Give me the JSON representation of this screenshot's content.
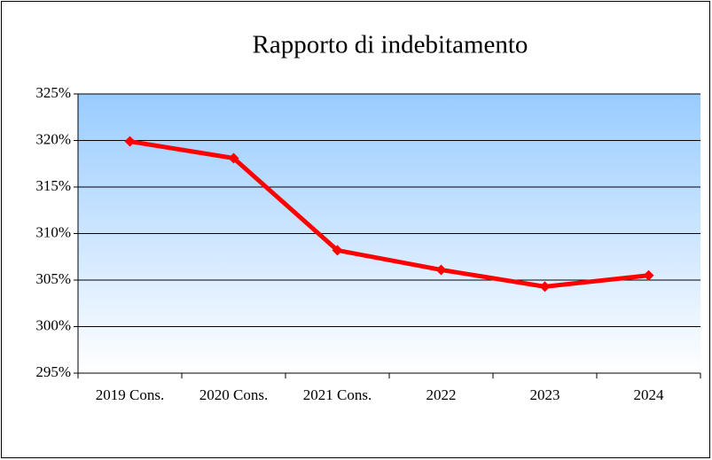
{
  "chart_data": {
    "type": "line",
    "title": "Rapporto di indebitamento",
    "categories": [
      "2019 Cons.",
      "2020 Cons.",
      "2021 Cons.",
      "2022",
      "2023",
      "2024"
    ],
    "series": [
      {
        "name": "Rapporto di indebitamento",
        "color": "#ff0000",
        "values": [
          319.9,
          318.1,
          308.2,
          306.1,
          304.3,
          305.5
        ]
      }
    ],
    "ylim": [
      295,
      325
    ],
    "yticks": [
      {
        "value": 295,
        "label": "295%"
      },
      {
        "value": 300,
        "label": "300%"
      },
      {
        "value": 305,
        "label": "305%"
      },
      {
        "value": 310,
        "label": "310%"
      },
      {
        "value": 315,
        "label": "315%"
      },
      {
        "value": 320,
        "label": "320%"
      },
      {
        "value": 325,
        "label": "325%"
      }
    ],
    "grid": true
  }
}
